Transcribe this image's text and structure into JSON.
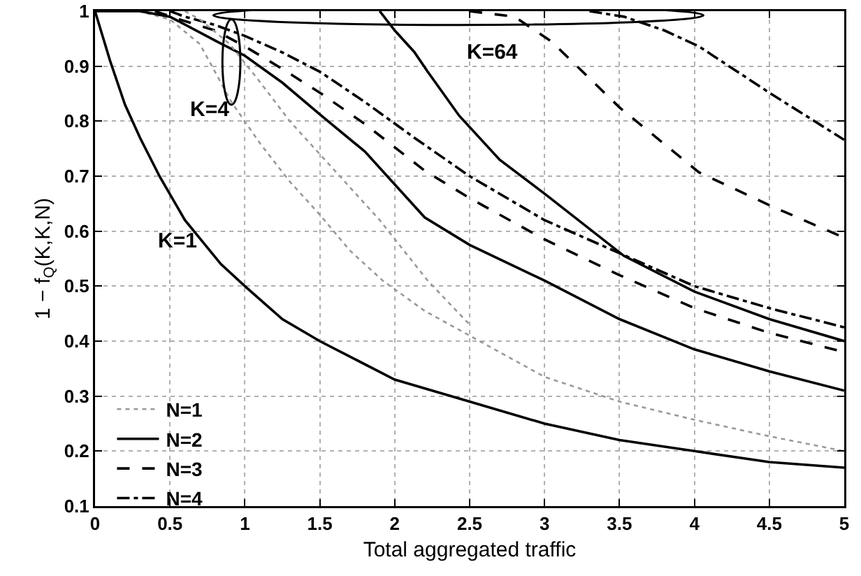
{
  "chart_data": {
    "type": "line",
    "xlabel": "Total aggregated traffic",
    "ylabel": "1 − f$_{Q}$(K,K,N)",
    "xlim": [
      0,
      5
    ],
    "xticks": [
      0,
      0.5,
      1,
      1.5,
      2,
      2.5,
      3,
      3.5,
      4,
      4.5,
      5
    ],
    "ylim": [
      0.1,
      1
    ],
    "yticks": [
      0.1,
      0.2,
      0.3,
      0.4,
      0.5,
      0.6,
      0.7,
      0.8,
      0.9,
      1
    ],
    "grid": true,
    "legend": "bottom left",
    "marker": "none",
    "annotations": [
      "K=64",
      "K=4",
      "K=1"
    ],
    "series": [
      {
        "name": "N=1",
        "color": "#999999",
        "line_style": "dotted",
        "x": [
          0.29,
          0.5,
          0.7,
          0.91,
          1.1,
          1.3,
          1.5,
          1.7,
          1.92,
          2.2,
          2.5,
          3,
          3.5,
          4,
          4.5,
          5
        ],
        "values": [
          1,
          0.985,
          0.94,
          0.835,
          0.76,
          0.69,
          0.63,
          0.565,
          0.51,
          0.455,
          0.41,
          0.335,
          0.29,
          0.257,
          0.227,
          0.2
        ]
      },
      {
        "name": "N=2",
        "color": "#000000",
        "line_style": "solid",
        "x": [
          0,
          0.3,
          0.5,
          0.82,
          1,
          1.25,
          1.51,
          1.8,
          2.2,
          2.5,
          3,
          3.5,
          4,
          4.5,
          5
        ],
        "values": [
          1,
          1,
          0.99,
          0.944,
          0.919,
          0.87,
          0.81,
          0.745,
          0.625,
          0.575,
          0.51,
          0.44,
          0.385,
          0.345,
          0.31
        ]
      },
      {
        "name": "N=3",
        "color": "#000000",
        "line_style": "dashed",
        "x": [
          0.4,
          0.54,
          0.8,
          1,
          1.25,
          1.51,
          1.8,
          2.2,
          2.5,
          3,
          3.5,
          4,
          4.5,
          5
        ],
        "values": [
          1,
          0.987,
          0.965,
          0.936,
          0.895,
          0.85,
          0.795,
          0.71,
          0.66,
          0.585,
          0.52,
          0.46,
          0.415,
          0.38
        ]
      },
      {
        "name": "N=4",
        "color": "#000000",
        "line_style": "dashdot",
        "x": [
          0.5,
          0.6,
          0.8,
          1,
          1.25,
          1.5,
          1.8,
          2.13,
          2.5,
          3,
          3.5,
          4,
          4.5,
          5
        ],
        "values": [
          1,
          0.99,
          0.975,
          0.955,
          0.925,
          0.89,
          0.835,
          0.77,
          0.7,
          0.62,
          0.56,
          0.5,
          0.46,
          0.425
        ]
      },
      {
        "color": "#999999",
        "line_style": "dotted",
        "x": [
          0.6,
          0.7,
          0.9,
          1.09,
          1.3,
          1.5,
          1.7,
          1.9,
          2.22,
          2.5
        ],
        "values": [
          1,
          0.985,
          0.94,
          0.875,
          0.8,
          0.74,
          0.68,
          0.62,
          0.51,
          0.43
        ]
      },
      {
        "color": "#000000",
        "line_style": "solid",
        "x": [
          0,
          0.1,
          0.2,
          0.3,
          0.43,
          0.6,
          0.84,
          1,
          1.25,
          1.5,
          2,
          2.5,
          3,
          3.5,
          4,
          4.5,
          5
        ],
        "values": [
          1,
          0.91,
          0.83,
          0.77,
          0.7,
          0.62,
          0.54,
          0.5,
          0.44,
          0.4,
          0.33,
          0.29,
          0.25,
          0.22,
          0.2,
          0.18,
          0.17
        ]
      },
      {
        "color": "#000000",
        "line_style": "solid",
        "x": [
          1.9,
          2,
          2.13,
          2.22,
          2.43,
          2.7,
          3.02,
          3.53,
          4,
          4.5,
          5
        ],
        "values": [
          1,
          0.965,
          0.926,
          0.89,
          0.81,
          0.73,
          0.664,
          0.555,
          0.49,
          0.44,
          0.4
        ]
      },
      {
        "color": "#000000",
        "line_style": "dashed",
        "x": [
          2.5,
          2.8,
          3.05,
          3.5,
          4.03,
          4.51,
          5
        ],
        "values": [
          1,
          0.99,
          0.944,
          0.825,
          0.707,
          0.646,
          0.588
        ]
      },
      {
        "color": "#000000",
        "line_style": "dashdot",
        "x": [
          3.3,
          3.53,
          3.8,
          4.03,
          4.51,
          5
        ],
        "values": [
          1,
          0.99,
          0.965,
          0.936,
          0.85,
          0.766
        ]
      }
    ]
  }
}
